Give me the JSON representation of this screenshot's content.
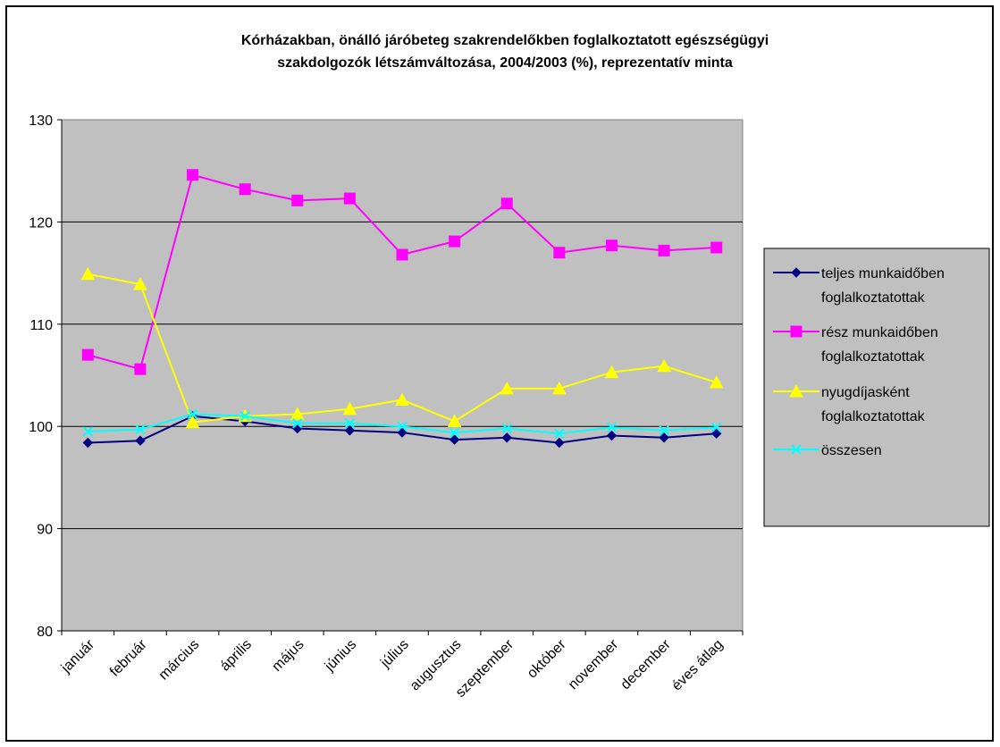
{
  "chart_data": {
    "type": "line",
    "title_lines": [
      "Kórházakban, önálló járóbeteg szakrendelőkben foglalkoztatott egészségügyi",
      "szakdolgozók létszámváltozása, 2004/2003 (%), reprezentatív minta"
    ],
    "xlabel": "",
    "ylabel": "",
    "ylim": [
      80,
      130
    ],
    "yticks": [
      80,
      90,
      100,
      110,
      120,
      130
    ],
    "grid": true,
    "legend_position": "right",
    "plot_background": "#c0c0c0",
    "categories": [
      "január",
      "február",
      "március",
      "április",
      "május",
      "június",
      "július",
      "augusztus",
      "szeptember",
      "október",
      "november",
      "december",
      "éves átlag"
    ],
    "series": [
      {
        "name_lines": [
          "teljes munkaidőben",
          "foglalkoztatottak"
        ],
        "color": "#000080",
        "marker": "diamond",
        "values": [
          98.4,
          98.6,
          101.0,
          100.5,
          99.8,
          99.6,
          99.4,
          98.7,
          98.9,
          98.4,
          99.1,
          98.9,
          99.3
        ]
      },
      {
        "name_lines": [
          "rész munkaidőben",
          "foglalkoztatottak"
        ],
        "color": "#ff00ff",
        "marker": "square",
        "values": [
          107.0,
          105.6,
          124.6,
          123.2,
          122.1,
          122.3,
          116.8,
          118.1,
          121.8,
          117.0,
          117.7,
          117.2,
          117.5
        ]
      },
      {
        "name_lines": [
          "nyugdíjasként",
          "foglalkoztatottak"
        ],
        "color": "#ffff00",
        "marker": "triangle",
        "values": [
          114.9,
          113.9,
          100.4,
          101.0,
          101.2,
          101.7,
          102.6,
          100.5,
          103.7,
          103.7,
          105.3,
          105.9,
          104.3
        ]
      },
      {
        "name_lines": [
          "összesen"
        ],
        "color": "#00ffff",
        "marker": "x",
        "values": [
          99.5,
          99.7,
          101.2,
          101.0,
          100.3,
          100.3,
          100.0,
          99.4,
          99.8,
          99.3,
          99.9,
          99.6,
          99.9
        ]
      }
    ]
  }
}
